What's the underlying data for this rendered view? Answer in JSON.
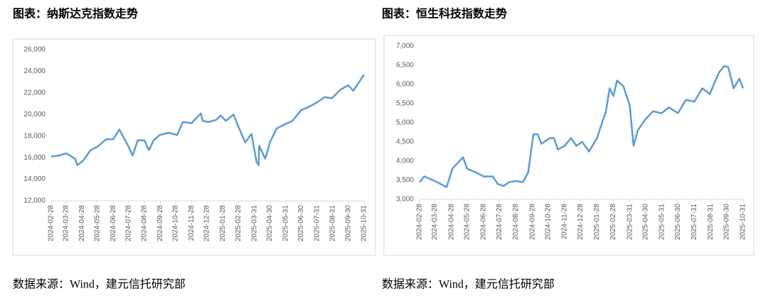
{
  "chart_data": [
    {
      "type": "line",
      "title": "图表：纳斯达克指数走势",
      "source": "数据来源：Wind，建元信托研究部",
      "x": [
        "2024-02-28",
        "2024-03-15",
        "2024-03-28",
        "2024-04-15",
        "2024-04-19",
        "2024-04-30",
        "2024-05-15",
        "2024-05-28",
        "2024-06-14",
        "2024-06-28",
        "2024-07-10",
        "2024-07-25",
        "2024-08-05",
        "2024-08-15",
        "2024-08-28",
        "2024-09-06",
        "2024-09-15",
        "2024-09-27",
        "2024-10-15",
        "2024-10-31",
        "2024-11-11",
        "2024-11-28",
        "2024-12-16",
        "2024-12-20",
        "2024-12-31",
        "2025-01-15",
        "2025-01-24",
        "2025-02-03",
        "2025-02-18",
        "2025-02-28",
        "2025-03-13",
        "2025-03-25",
        "2025-04-04",
        "2025-04-08",
        "2025-04-09",
        "2025-04-21",
        "2025-04-30",
        "2025-05-13",
        "2025-05-30",
        "2025-06-13",
        "2025-06-30",
        "2025-07-15",
        "2025-07-31",
        "2025-08-15",
        "2025-08-29",
        "2025-09-15",
        "2025-09-30",
        "2025-10-10",
        "2025-10-24",
        "2025-10-31"
      ],
      "series": [
        {
          "color": "#5b9bd5",
          "values": [
            16100,
            16200,
            16400,
            15900,
            15300,
            15700,
            16700,
            17000,
            17700,
            17700,
            18600,
            17300,
            16200,
            17600,
            17600,
            16700,
            17600,
            18100,
            18300,
            18100,
            19300,
            19200,
            20100,
            19400,
            19300,
            19500,
            19900,
            19400,
            20000,
            18800,
            17400,
            18200,
            15600,
            15300,
            17100,
            15900,
            17400,
            18700,
            19100,
            19400,
            20400,
            20700,
            21100,
            21600,
            21500,
            22300,
            22700,
            22200,
            23200,
            23700
          ]
        }
      ],
      "xlim": [
        "2024-02-28",
        "2025-10-31"
      ],
      "xticks": [
        "2024-02-28",
        "2024-03-28",
        "2024-04-28",
        "2024-05-28",
        "2024-06-28",
        "2024-07-28",
        "2024-08-28",
        "2024-09-28",
        "2024-10-28",
        "2024-11-28",
        "2024-12-28",
        "2025-01-28",
        "2025-02-28",
        "2025-03-31",
        "2025-04-30",
        "2025-05-31",
        "2025-06-30",
        "2025-07-31",
        "2025-08-31",
        "2025-09-30",
        "2025-10-31"
      ],
      "ylim": [
        12000,
        26000
      ],
      "yticks": [
        {
          "value": 12000,
          "label": "12,000"
        },
        {
          "value": 14000,
          "label": "14,000"
        },
        {
          "value": 16000,
          "label": "16,000"
        },
        {
          "value": 18000,
          "label": "18,000"
        },
        {
          "value": 20000,
          "label": "20,000"
        },
        {
          "value": 22000,
          "label": "22,000"
        },
        {
          "value": 24000,
          "label": "24,000"
        },
        {
          "value": 26000,
          "label": "26,000"
        }
      ],
      "grid": false
    },
    {
      "type": "line",
      "title": "图表：恒生科技指数走势",
      "source": "数据来源：Wind，建元信托研究部",
      "x": [
        "2024-02-28",
        "2024-03-08",
        "2024-03-28",
        "2024-04-15",
        "2024-04-19",
        "2024-04-30",
        "2024-05-20",
        "2024-05-28",
        "2024-06-14",
        "2024-06-28",
        "2024-07-15",
        "2024-07-25",
        "2024-08-05",
        "2024-08-15",
        "2024-08-28",
        "2024-09-10",
        "2024-09-20",
        "2024-09-30",
        "2024-10-08",
        "2024-10-15",
        "2024-10-31",
        "2024-11-08",
        "2024-11-15",
        "2024-11-28",
        "2024-12-10",
        "2024-12-20",
        "2024-12-31",
        "2025-01-13",
        "2025-01-28",
        "2025-02-14",
        "2025-02-21",
        "2025-02-28",
        "2025-03-07",
        "2025-03-19",
        "2025-03-31",
        "2025-04-07",
        "2025-04-15",
        "2025-04-30",
        "2025-05-14",
        "2025-05-30",
        "2025-06-13",
        "2025-06-30",
        "2025-07-15",
        "2025-07-31",
        "2025-08-15",
        "2025-08-29",
        "2025-09-15",
        "2025-09-25",
        "2025-10-03",
        "2025-10-13",
        "2025-10-24",
        "2025-10-31"
      ],
      "series": [
        {
          "color": "#5b9bd5",
          "values": [
            3450,
            3600,
            3480,
            3350,
            3320,
            3800,
            4100,
            3800,
            3700,
            3600,
            3600,
            3400,
            3350,
            3450,
            3480,
            3450,
            3700,
            4700,
            4700,
            4450,
            4600,
            4600,
            4300,
            4400,
            4600,
            4400,
            4500,
            4250,
            4600,
            5300,
            5900,
            5700,
            6100,
            5950,
            5450,
            4400,
            4800,
            5100,
            5300,
            5250,
            5400,
            5250,
            5600,
            5550,
            5900,
            5750,
            6300,
            6480,
            6450,
            5900,
            6150,
            5900
          ]
        }
      ],
      "xlim": [
        "2024-02-28",
        "2025-10-31"
      ],
      "xticks": [
        "2024-02-28",
        "2024-03-28",
        "2024-04-28",
        "2024-05-28",
        "2024-06-28",
        "2024-07-28",
        "2024-08-28",
        "2024-09-28",
        "2024-10-28",
        "2024-11-28",
        "2024-12-28",
        "2025-01-28",
        "2025-02-28",
        "2025-03-31",
        "2025-04-30",
        "2025-05-31",
        "2025-06-30",
        "2025-07-31",
        "2025-08-31",
        "2025-09-30",
        "2025-10-31"
      ],
      "ylim": [
        3000,
        7000
      ],
      "yticks": [
        {
          "value": 3000,
          "label": "3,000"
        },
        {
          "value": 3500,
          "label": "3,500"
        },
        {
          "value": 4000,
          "label": "4,000"
        },
        {
          "value": 4500,
          "label": "4,500"
        },
        {
          "value": 5000,
          "label": "5,000"
        },
        {
          "value": 5500,
          "label": "5,500"
        },
        {
          "value": 6000,
          "label": "6,000"
        },
        {
          "value": 6500,
          "label": "6,500"
        },
        {
          "value": 7000,
          "label": "7,000"
        }
      ],
      "grid": false
    }
  ]
}
